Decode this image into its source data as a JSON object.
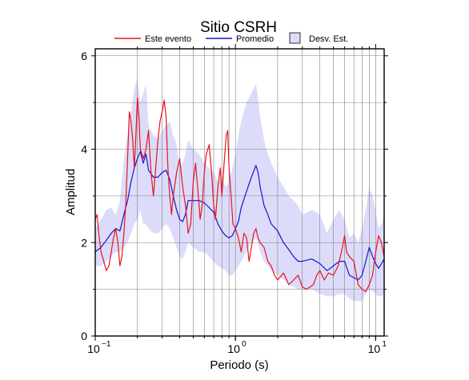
{
  "chart_data": {
    "type": "line",
    "title": "Sitio CSRH",
    "xlabel": "Periodo (s)",
    "ylabel": "Amplitud",
    "x_scale": "log",
    "xlim": [
      0.1,
      11.5
    ],
    "ylim": [
      0,
      6.15
    ],
    "x_ticks": [
      {
        "value": 0.1,
        "base": "10",
        "exp": "−1"
      },
      {
        "value": 1,
        "base": "10",
        "exp": "0"
      },
      {
        "value": 10,
        "base": "10",
        "exp": "1"
      }
    ],
    "y_ticks": [
      0,
      2,
      4,
      6
    ],
    "grid": true,
    "legend_position": "top",
    "legend": {
      "event_label": "Este evento",
      "mean_label": "Promedio",
      "std_label": "Desv. Est."
    },
    "colors": {
      "event": "#e8141c",
      "mean": "#1414d2",
      "std_fill": "#dcdcfa",
      "grid": "#808080"
    },
    "series": [
      {
        "name": "Este evento",
        "x": [
          0.1,
          0.103,
          0.106,
          0.11,
          0.115,
          0.12,
          0.125,
          0.13,
          0.135,
          0.14,
          0.145,
          0.15,
          0.155,
          0.16,
          0.165,
          0.17,
          0.175,
          0.18,
          0.185,
          0.19,
          0.195,
          0.2,
          0.205,
          0.21,
          0.22,
          0.23,
          0.24,
          0.25,
          0.26,
          0.27,
          0.28,
          0.29,
          0.3,
          0.31,
          0.32,
          0.33,
          0.34,
          0.35,
          0.36,
          0.38,
          0.4,
          0.42,
          0.44,
          0.46,
          0.48,
          0.5,
          0.52,
          0.54,
          0.56,
          0.58,
          0.6,
          0.62,
          0.65,
          0.68,
          0.7,
          0.72,
          0.75,
          0.78,
          0.8,
          0.83,
          0.86,
          0.88,
          0.9,
          0.93,
          0.96,
          1.0,
          1.05,
          1.1,
          1.15,
          1.2,
          1.25,
          1.3,
          1.35,
          1.4,
          1.45,
          1.5,
          1.6,
          1.7,
          1.8,
          1.9,
          2.0,
          2.2,
          2.4,
          2.6,
          2.8,
          3.0,
          3.2,
          3.4,
          3.6,
          3.8,
          4.0,
          4.3,
          4.6,
          5.0,
          5.4,
          5.8,
          6.0,
          6.2,
          6.5,
          7.0,
          7.5,
          8.0,
          8.5,
          9.0,
          9.5,
          10.0,
          10.5,
          11.0,
          11.5
        ],
        "values": [
          2.5,
          2.6,
          2.2,
          1.8,
          1.6,
          1.4,
          1.5,
          1.8,
          2.1,
          2.3,
          2.0,
          1.5,
          1.7,
          2.2,
          2.8,
          3.8,
          4.8,
          4.6,
          4.2,
          3.6,
          4.3,
          5.1,
          4.7,
          4.0,
          3.8,
          4.0,
          4.4,
          3.5,
          3.0,
          3.6,
          4.2,
          4.6,
          4.8,
          5.05,
          4.7,
          3.6,
          3.0,
          2.6,
          3.0,
          3.5,
          3.8,
          3.2,
          2.8,
          2.2,
          2.4,
          3.3,
          3.7,
          3.1,
          2.5,
          2.8,
          3.5,
          3.9,
          4.1,
          3.4,
          2.8,
          2.5,
          3.2,
          3.6,
          3.0,
          3.7,
          4.3,
          4.4,
          3.6,
          3.0,
          2.4,
          2.3,
          2.1,
          1.8,
          2.2,
          2.1,
          1.6,
          1.9,
          2.2,
          2.3,
          2.1,
          2.0,
          1.9,
          1.6,
          1.5,
          1.3,
          1.2,
          1.35,
          1.1,
          1.2,
          1.3,
          1.05,
          1.0,
          1.05,
          1.1,
          1.3,
          1.4,
          1.2,
          1.35,
          1.3,
          1.5,
          1.9,
          2.15,
          1.8,
          1.7,
          1.6,
          1.1,
          1.0,
          0.95,
          1.1,
          1.3,
          1.8,
          2.15,
          2.0,
          1.7
        ]
      },
      {
        "name": "Promedio",
        "x": [
          0.1,
          0.11,
          0.12,
          0.13,
          0.14,
          0.15,
          0.16,
          0.17,
          0.18,
          0.19,
          0.2,
          0.21,
          0.22,
          0.23,
          0.24,
          0.26,
          0.28,
          0.3,
          0.32,
          0.34,
          0.36,
          0.38,
          0.4,
          0.42,
          0.44,
          0.46,
          0.5,
          0.55,
          0.6,
          0.65,
          0.7,
          0.75,
          0.8,
          0.85,
          0.9,
          0.95,
          1.0,
          1.05,
          1.1,
          1.2,
          1.3,
          1.4,
          1.45,
          1.5,
          1.6,
          1.7,
          1.8,
          2.0,
          2.2,
          2.4,
          2.6,
          2.8,
          3.0,
          3.5,
          4.0,
          4.5,
          5.0,
          5.5,
          6.0,
          6.5,
          7.0,
          7.5,
          8.0,
          8.5,
          9.0,
          9.5,
          10.0,
          10.5,
          11.0,
          11.5
        ],
        "values": [
          1.8,
          1.9,
          2.05,
          2.2,
          2.3,
          2.25,
          2.6,
          2.9,
          3.3,
          3.6,
          3.8,
          3.95,
          3.7,
          3.9,
          3.55,
          3.4,
          3.4,
          3.5,
          3.55,
          3.35,
          3.0,
          2.7,
          2.5,
          2.45,
          2.6,
          2.9,
          2.9,
          2.9,
          2.85,
          2.75,
          2.65,
          2.4,
          2.25,
          2.15,
          2.1,
          2.15,
          2.3,
          2.45,
          2.75,
          3.1,
          3.4,
          3.65,
          3.5,
          3.2,
          2.8,
          2.6,
          2.4,
          2.25,
          2.0,
          1.85,
          1.7,
          1.6,
          1.6,
          1.65,
          1.55,
          1.4,
          1.5,
          1.6,
          1.6,
          1.3,
          1.25,
          1.2,
          1.3,
          1.6,
          1.9,
          1.7,
          1.55,
          1.45,
          1.55,
          1.65
        ]
      },
      {
        "name": "Desv. Est.",
        "x": [
          0.1,
          0.11,
          0.12,
          0.13,
          0.14,
          0.15,
          0.16,
          0.17,
          0.18,
          0.19,
          0.2,
          0.21,
          0.22,
          0.23,
          0.24,
          0.26,
          0.28,
          0.3,
          0.32,
          0.34,
          0.36,
          0.38,
          0.4,
          0.42,
          0.44,
          0.46,
          0.5,
          0.55,
          0.6,
          0.65,
          0.7,
          0.75,
          0.8,
          0.85,
          0.9,
          0.95,
          1.0,
          1.05,
          1.1,
          1.2,
          1.3,
          1.4,
          1.45,
          1.5,
          1.6,
          1.7,
          1.8,
          2.0,
          2.2,
          2.4,
          2.6,
          2.8,
          3.0,
          3.5,
          4.0,
          4.5,
          5.0,
          5.5,
          6.0,
          6.5,
          7.0,
          7.5,
          8.0,
          8.5,
          9.0,
          9.5,
          10.0,
          10.5,
          11.0,
          11.5
        ],
        "upper": [
          2.3,
          2.5,
          2.7,
          2.75,
          2.6,
          2.9,
          3.8,
          4.3,
          4.8,
          5.3,
          5.5,
          5.0,
          5.2,
          5.4,
          4.5,
          4.3,
          4.2,
          4.4,
          4.5,
          4.6,
          4.3,
          4.1,
          3.6,
          3.7,
          3.9,
          4.2,
          4.0,
          3.9,
          3.7,
          3.6,
          3.5,
          3.3,
          3.4,
          3.2,
          3.3,
          3.6,
          3.9,
          4.3,
          4.6,
          5.0,
          5.2,
          5.4,
          5.1,
          4.7,
          4.2,
          3.9,
          3.7,
          3.4,
          3.2,
          3.0,
          2.9,
          2.8,
          2.6,
          2.7,
          2.6,
          2.2,
          2.5,
          2.7,
          2.5,
          2.1,
          2.2,
          2.0,
          2.3,
          2.7,
          3.2,
          3.0,
          2.7,
          2.3,
          2.4,
          2.6
        ],
        "lower": [
          1.5,
          1.5,
          1.6,
          1.7,
          1.8,
          1.8,
          1.9,
          2.0,
          2.2,
          2.4,
          2.5,
          2.7,
          2.4,
          2.4,
          2.3,
          2.2,
          2.2,
          2.3,
          2.4,
          2.3,
          2.1,
          1.9,
          1.7,
          1.65,
          1.8,
          2.0,
          1.9,
          1.8,
          1.8,
          1.7,
          1.6,
          1.5,
          1.45,
          1.4,
          1.3,
          1.3,
          1.4,
          1.5,
          1.6,
          1.8,
          2.0,
          2.1,
          2.0,
          1.8,
          1.6,
          1.5,
          1.4,
          1.3,
          1.2,
          1.1,
          1.05,
          1.0,
          1.0,
          1.0,
          0.9,
          0.85,
          0.85,
          0.9,
          0.9,
          0.8,
          0.75,
          0.75,
          0.75,
          0.9,
          1.0,
          0.95,
          0.9,
          0.85,
          0.85,
          0.9
        ]
      }
    ]
  }
}
